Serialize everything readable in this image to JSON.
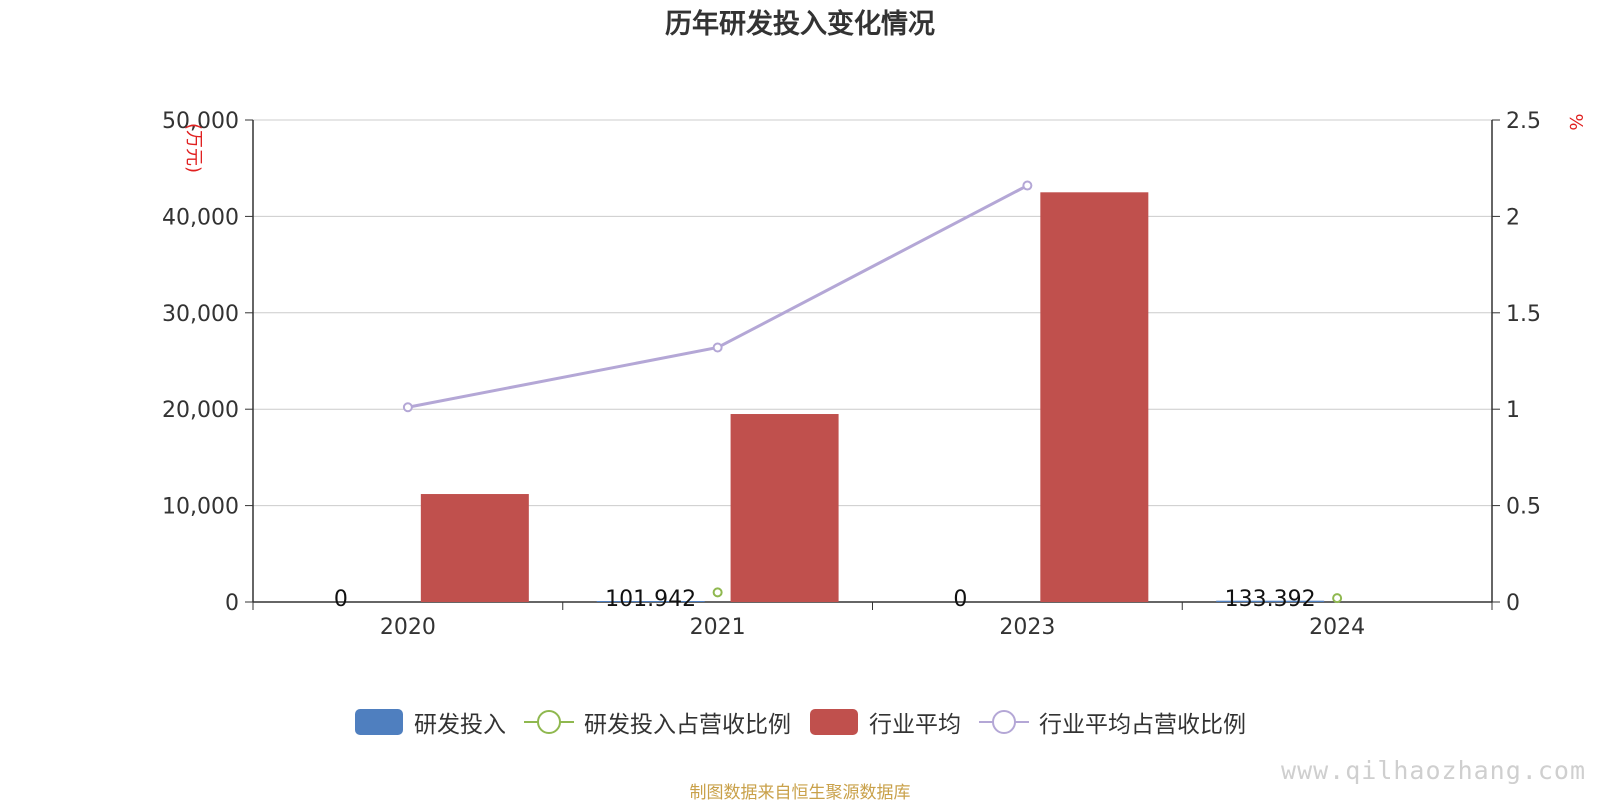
{
  "chart_data": {
    "type": "bar",
    "title": "历年研发投入变化情况",
    "categories": [
      "2020",
      "2021",
      "2023",
      "2024"
    ],
    "y_left": {
      "unit_label": "(万元)",
      "ylim": [
        0,
        50000
      ],
      "ticks": [
        "0",
        "10,000",
        "20,000",
        "30,000",
        "40,000",
        "50,000"
      ]
    },
    "y_right": {
      "unit_label": "%",
      "ylim": [
        0,
        2.5
      ],
      "ticks": [
        "0",
        "0.5",
        "1",
        "1.5",
        "2",
        "2.5"
      ]
    },
    "series": [
      {
        "name": "研发投入",
        "kind": "bar",
        "axis": "left",
        "color": "#4f7fbf",
        "values": [
          0,
          101.942,
          0,
          133.392
        ],
        "labels": [
          "0",
          "101.942",
          "0",
          "133.392"
        ]
      },
      {
        "name": "研发投入占营收比例",
        "kind": "line",
        "axis": "right",
        "color": "#8fb84f",
        "values": [
          null,
          0.05,
          null,
          0.02
        ],
        "show_line": false
      },
      {
        "name": "行业平均",
        "kind": "bar",
        "axis": "left",
        "color": "#c0504d",
        "values": [
          11200,
          19500,
          42500,
          0
        ]
      },
      {
        "name": "行业平均占营收比例",
        "kind": "line",
        "axis": "right",
        "color": "#b4a7d6",
        "values": [
          1.01,
          1.32,
          2.16,
          null
        ],
        "show_line": true
      }
    ],
    "grid": true,
    "legend_position": "bottom"
  },
  "source_note": "制图数据来自恒生聚源数据库",
  "watermark": "www.qilhaozhang.com"
}
